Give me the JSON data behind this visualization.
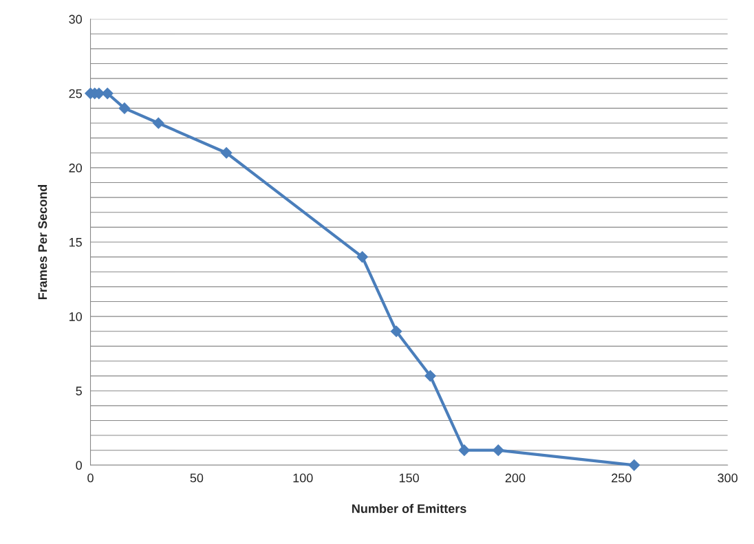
{
  "chart_data": {
    "type": "line",
    "xlabel": "Number of Emitters",
    "ylabel": "Frames Per Second",
    "x": [
      0,
      2,
      4,
      8,
      16,
      32,
      64,
      128,
      144,
      160,
      176,
      192,
      256
    ],
    "series": [
      {
        "color": "#4a7ebb",
        "values": [
          25,
          25,
          25,
          25,
          24,
          23,
          21,
          14,
          9,
          6,
          1,
          1,
          0
        ]
      }
    ],
    "xlim": [
      0,
      300
    ],
    "xticks": [
      0,
      50,
      100,
      150,
      200,
      250,
      300
    ],
    "ylim": [
      0,
      30
    ],
    "yticks": [
      0,
      {
        "value": 1,
        "label": null
      },
      {
        "value": 2,
        "label": null
      },
      {
        "value": 3,
        "label": null
      },
      {
        "value": 4,
        "label": null
      },
      5,
      {
        "value": 6,
        "label": null
      },
      {
        "value": 7,
        "label": null
      },
      {
        "value": 8,
        "label": null
      },
      {
        "value": 9,
        "label": null
      },
      10,
      {
        "value": 11,
        "label": null
      },
      {
        "value": 12,
        "label": null
      },
      {
        "value": 13,
        "label": null
      },
      {
        "value": 14,
        "label": null
      },
      15,
      {
        "value": 16,
        "label": null
      },
      {
        "value": 17,
        "label": null
      },
      {
        "value": 18,
        "label": null
      },
      {
        "value": 19,
        "label": null
      },
      20,
      {
        "value": 21,
        "label": null
      },
      {
        "value": 22,
        "label": null
      },
      {
        "value": 23,
        "label": null
      },
      {
        "value": 24,
        "label": null
      },
      25,
      {
        "value": 26,
        "label": null
      },
      {
        "value": 27,
        "label": null
      },
      {
        "value": 28,
        "label": null
      },
      {
        "value": 29,
        "label": null
      },
      30
    ],
    "grid": "y",
    "marker": "diamond",
    "line_style": "solid"
  }
}
